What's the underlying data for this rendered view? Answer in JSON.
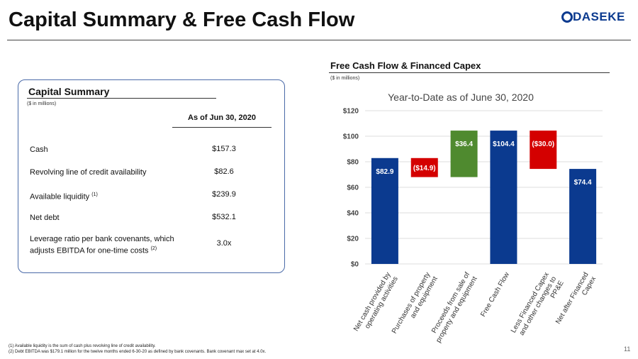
{
  "header": {
    "title": "Capital Summary & Free Cash Flow",
    "logo": "DASEKE",
    "page_number": "11"
  },
  "table": {
    "title": "Capital Summary",
    "units": "($ in millions)",
    "column_header": "As of Jun 30, 2020",
    "rows": [
      {
        "label": "Cash",
        "value": "$157.3"
      },
      {
        "label": "Revolving line of credit availability",
        "value": "$82.6"
      },
      {
        "label": "Available liquidity",
        "note": "(1)",
        "value": "$239.9"
      },
      {
        "label": "Net debt",
        "value": "$532.1"
      },
      {
        "label": "Leverage ratio per bank covenants, which adjusts EBITDA for one-time costs",
        "note": "(2)",
        "value": "3.0x"
      }
    ]
  },
  "chart_section": {
    "heading": "Free Cash Flow & Financed Capex",
    "units": "($ in millions)"
  },
  "chart_data": {
    "type": "waterfall",
    "title": "Year-to-Date as of June 30, 2020",
    "categories": [
      [
        "Net cash provided by",
        "operating activities"
      ],
      [
        "Purchases of property",
        "and equipment"
      ],
      [
        "Proceeds from sale of",
        "property and equipment"
      ],
      [
        "Free Cash Flow"
      ],
      [
        "Less Financed Capex",
        "and other changes to",
        "PP&E"
      ],
      [
        "Net after Financed",
        "Capex"
      ]
    ],
    "values": [
      82.9,
      -14.9,
      36.4,
      104.4,
      -30.0,
      74.4
    ],
    "value_labels": [
      "$82.9",
      "($14.9)",
      "$36.4",
      "$104.4",
      "($30.0)",
      "$74.4"
    ],
    "measure": [
      "absolute",
      "relative",
      "relative",
      "total",
      "relative",
      "total"
    ],
    "colors": [
      "#0b3a8f",
      "#d40000",
      "#4f8a2f",
      "#0b3a8f",
      "#d40000",
      "#0b3a8f"
    ],
    "ylim": [
      0,
      120
    ],
    "yticks": [
      {
        "value": 0,
        "label": "$0"
      },
      {
        "value": 20,
        "label": "$20"
      },
      {
        "value": 40,
        "label": "$40"
      },
      {
        "value": 60,
        "label": "$60"
      },
      {
        "value": 80,
        "label": "$80"
      },
      {
        "value": 100,
        "label": "$100"
      },
      {
        "value": 120,
        "label": "$120"
      }
    ],
    "grid": true
  },
  "footnotes": [
    "(1) Available liquidity is the sum of cash plus revolving line of credit availability.",
    "(2) Debt EBITDA was $179.1 million for the twelve months ended 6-30-20 as defined by bank covenants. Bank covenant max set at 4.0x."
  ]
}
